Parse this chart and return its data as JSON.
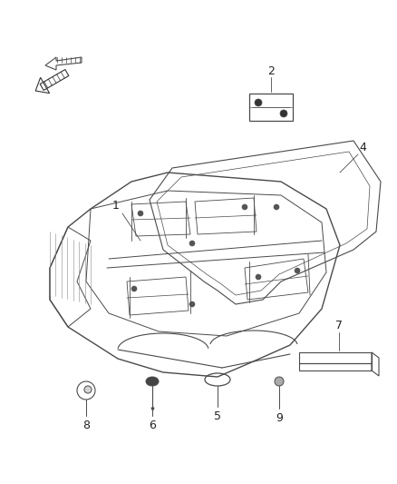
{
  "background_color": "#ffffff",
  "line_color": "#4a4a4a",
  "label_color": "#222222",
  "fig_width": 4.38,
  "fig_height": 5.33,
  "dpi": 100
}
